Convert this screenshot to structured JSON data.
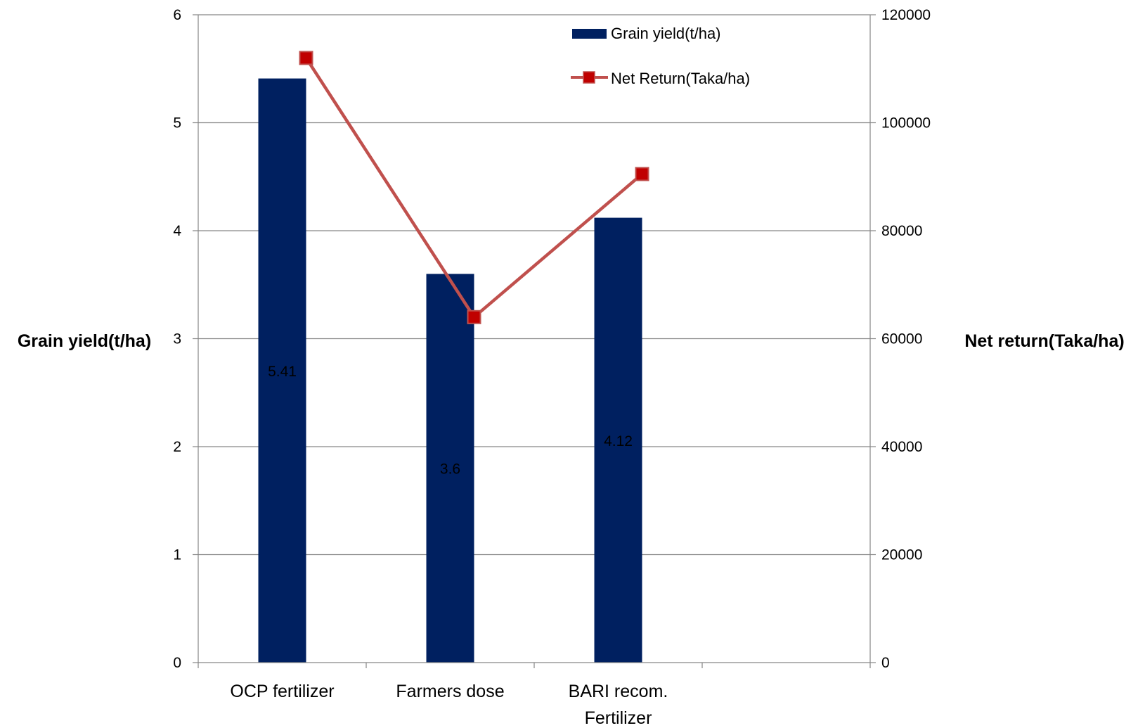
{
  "chart_data": {
    "type": "bar",
    "categories": [
      "OCP fertilizer",
      "Farmers dose",
      "BARI recom. Fertilizer"
    ],
    "category_lines": [
      [
        "OCP fertilizer"
      ],
      [
        "Farmers dose"
      ],
      [
        "BARI recom.",
        "Fertilizer"
      ]
    ],
    "series": [
      {
        "name": "Grain yield(t/ha)",
        "type": "bar",
        "axis": "left",
        "values": [
          5.41,
          3.6,
          4.12
        ],
        "labels": [
          "5.41",
          "3.6",
          "4.12"
        ],
        "color": "#002060"
      },
      {
        "name": "Net Return(Taka/ha)",
        "type": "line",
        "axis": "right",
        "marker": "square",
        "values": [
          112000,
          64000,
          90500
        ],
        "color": "#C0504D",
        "marker_color": "#C00000"
      }
    ],
    "ylabel": "Grain yield(t/ha)",
    "y2label": "Net return(Taka/ha)",
    "ylim": [
      0,
      6
    ],
    "yticks": [
      0,
      1,
      2,
      3,
      4,
      5,
      6
    ],
    "y2lim": [
      0,
      120000
    ],
    "y2ticks": [
      0,
      20000,
      40000,
      60000,
      80000,
      100000,
      120000
    ],
    "category_slots": 4,
    "grid": true,
    "legend": "top-right"
  }
}
